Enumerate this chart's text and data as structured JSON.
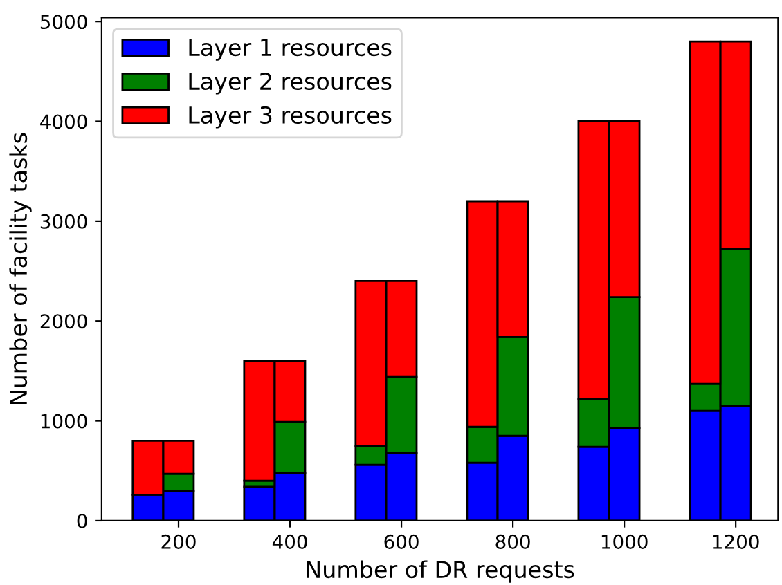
{
  "chart_data": {
    "type": "bar",
    "stacked": true,
    "xlabel": "Number of DR requests",
    "ylabel": "Number of facility tasks",
    "x": [
      145,
      200,
      345,
      400,
      545,
      600,
      745,
      800,
      945,
      1000,
      1145,
      1200
    ],
    "series": [
      {
        "name": "Layer 1 resources",
        "color": "#0000ff",
        "values": [
          260,
          300,
          340,
          480,
          560,
          680,
          580,
          850,
          740,
          930,
          1100,
          1150
        ]
      },
      {
        "name": "Layer 2 resources",
        "color": "#008000",
        "values": [
          null,
          170,
          60,
          510,
          190,
          760,
          360,
          990,
          480,
          1310,
          270,
          1570
        ]
      },
      {
        "name": "Layer 3 resources",
        "color": "#ff0000",
        "values": [
          540,
          330,
          1200,
          610,
          1650,
          960,
          2260,
          1360,
          2780,
          1760,
          3430,
          2080
        ]
      }
    ],
    "xlim": [
      62,
      1276
    ],
    "xticks": [
      200,
      400,
      600,
      800,
      1000,
      1200
    ],
    "ylim": [
      0,
      5040
    ],
    "yticks": [
      0,
      1000,
      2000,
      3000,
      4000,
      5000
    ],
    "legend": "top left",
    "grid": false
  }
}
